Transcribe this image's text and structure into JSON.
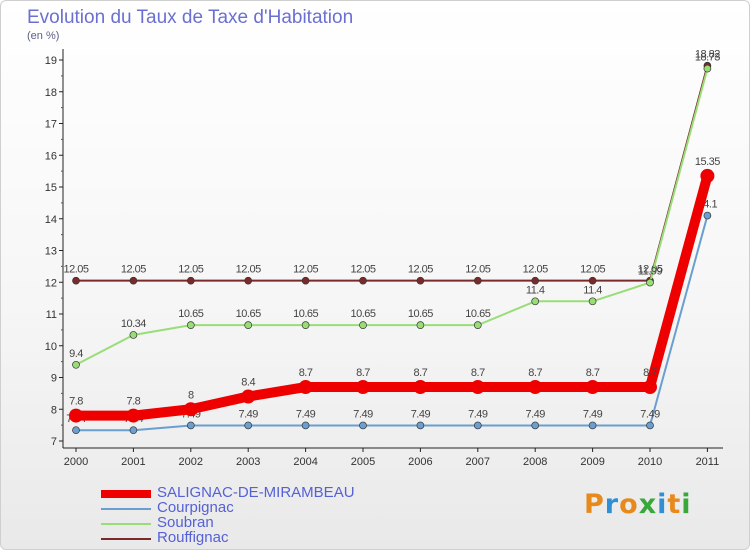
{
  "title": "Evolution du Taux de Taxe d'Habitation",
  "unit_label": "(en %)",
  "logo": {
    "text": "Proxiti",
    "colors": [
      "#e8891c",
      "#2f8fd4",
      "#e8891c",
      "#39a83a",
      "#2f8fd4",
      "#e8891c",
      "#39a83a"
    ]
  },
  "chart_data": {
    "type": "line",
    "title": "Evolution du Taux de Taxe d'Habitation",
    "ylabel": "(en %)",
    "x": [
      "2000",
      "2001",
      "2002",
      "2003",
      "2004",
      "2005",
      "2006",
      "2007",
      "2008",
      "2009",
      "2010",
      "2011"
    ],
    "yticks": [
      7,
      8,
      9,
      10,
      11,
      12,
      13,
      14,
      15,
      16,
      17,
      18,
      19
    ],
    "ylim": [
      7,
      19
    ],
    "grid": false,
    "legend_position": "bottom-left",
    "series": [
      {
        "name": "Rouffignac",
        "color": "#7a2a2a",
        "values": [
          12.05,
          12.05,
          12.05,
          12.05,
          12.05,
          12.05,
          12.05,
          12.05,
          12.05,
          12.05,
          12.05,
          18.82
        ],
        "labels": [
          "12.05",
          "12.05",
          "12.05",
          "12.05",
          "12.05",
          "12.05",
          "12.05",
          "12.05",
          "12.05",
          "12.05",
          "12.05",
          "18.82"
        ]
      },
      {
        "name": "Soubran",
        "color": "#99dd77",
        "values": [
          9.4,
          10.34,
          10.65,
          10.65,
          10.65,
          10.65,
          10.65,
          10.65,
          11.4,
          11.4,
          11.99,
          18.73
        ],
        "labels": [
          "9.4",
          "10.34",
          "10.65",
          "10.65",
          "10.65",
          "10.65",
          "10.65",
          "10.65",
          "11.4",
          "11.4",
          "11.99",
          "18.73"
        ]
      },
      {
        "name": "Courpignac",
        "color": "#6a9fcf",
        "values": [
          7.34,
          7.34,
          7.49,
          7.49,
          7.49,
          7.49,
          7.49,
          7.49,
          7.49,
          7.49,
          7.49,
          14.1
        ],
        "labels": [
          "7.34",
          "7.34",
          "7.49",
          "7.49",
          "7.49",
          "7.49",
          "7.49",
          "7.49",
          "7.49",
          "7.49",
          "7.49",
          "14.1"
        ]
      },
      {
        "name": "SALIGNAC-DE-MIRAMBEAU",
        "color": "#ee0000",
        "values": [
          7.8,
          7.8,
          8,
          8.4,
          8.7,
          8.7,
          8.7,
          8.7,
          8.7,
          8.7,
          8.7,
          15.35
        ],
        "labels": [
          "7.8",
          "7.8",
          "8",
          "8.4",
          "8.7",
          "8.7",
          "8.7",
          "8.7",
          "8.7",
          "8.7",
          "8.7",
          "15.35"
        ]
      }
    ],
    "legend": [
      "SALIGNAC-DE-MIRAMBEAU",
      "Courpignac",
      "Soubran",
      "Rouffignac"
    ]
  }
}
